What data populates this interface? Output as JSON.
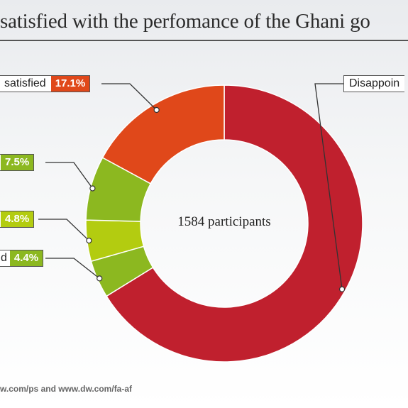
{
  "chart_data": {
    "type": "pie",
    "title": "satisfied with the perfomance of the Ghani go",
    "center_label": "1584 participants",
    "slices": [
      {
        "label": "Disappoin",
        "value": 66.2,
        "value_label": "",
        "color": "#c0202e"
      },
      {
        "label": "d",
        "value": 4.4,
        "value_label": "4.4%",
        "color": "#8cb820"
      },
      {
        "label": "",
        "value": 4.8,
        "value_label": "4.8%",
        "color": "#b3cc10"
      },
      {
        "label": "",
        "value": 7.5,
        "value_label": "7.5%",
        "color": "#8cb820"
      },
      {
        "label": "satisfied",
        "value": 17.1,
        "value_label": "17.1%",
        "color": "#e0481a"
      }
    ]
  },
  "source": "w.com/ps and www.dw.com/fa-af"
}
